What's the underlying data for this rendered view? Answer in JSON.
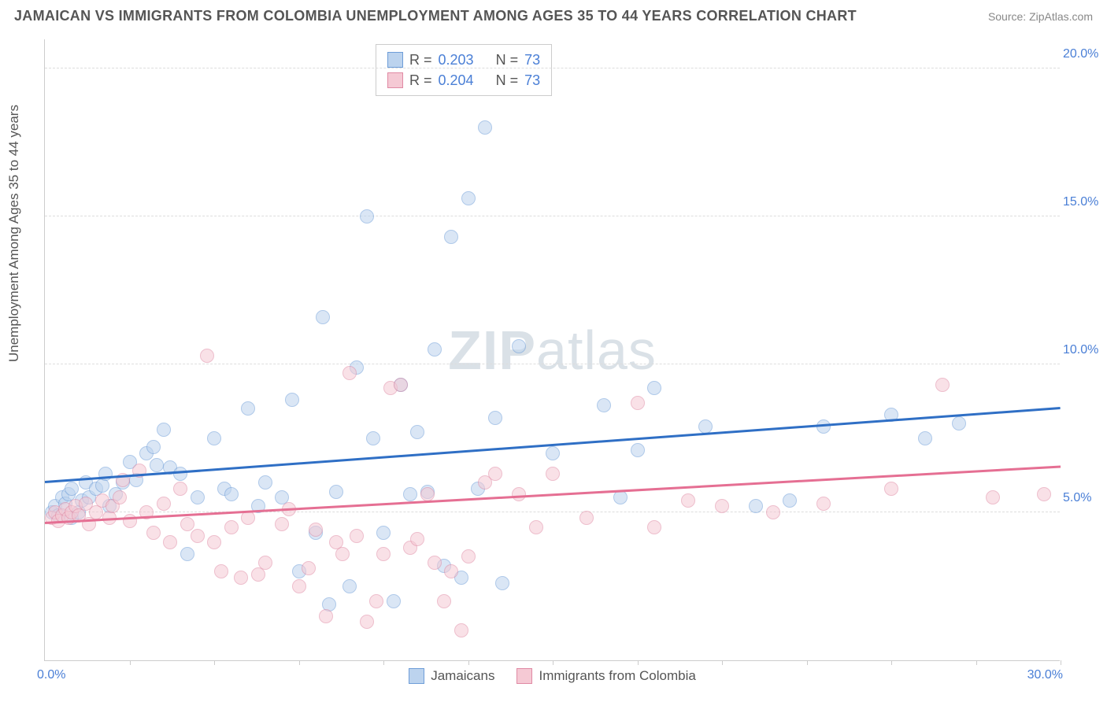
{
  "title": "JAMAICAN VS IMMIGRANTS FROM COLOMBIA UNEMPLOYMENT AMONG AGES 35 TO 44 YEARS CORRELATION CHART",
  "source": "Source: ZipAtlas.com",
  "ylabel": "Unemployment Among Ages 35 to 44 years",
  "watermark_a": "ZIP",
  "watermark_b": "atlas",
  "chart": {
    "type": "scatter",
    "xlim": [
      0,
      30
    ],
    "ylim": [
      0,
      21
    ],
    "xticks": [
      2.5,
      5,
      7.5,
      10,
      12.5,
      15,
      17.5,
      20,
      22.5,
      25,
      27.5,
      30
    ],
    "xtick_labels": {
      "left": "0.0%",
      "right": "30.0%"
    },
    "yticks": [
      5,
      10,
      15,
      20
    ],
    "ytick_labels": [
      "5.0%",
      "10.0%",
      "15.0%",
      "20.0%"
    ],
    "background_color": "#ffffff",
    "grid_color": "#dddddd",
    "marker_radius": 9,
    "marker_opacity": 0.55,
    "series": [
      {
        "name": "Jamaicans",
        "fill": "#bcd3ee",
        "stroke": "#6e9dd8",
        "trend_color": "#2f6fc5",
        "r_value": "0.203",
        "n_value": "73",
        "trend": {
          "y_at_x0": 6.0,
          "y_at_xmax": 8.5
        },
        "points": [
          [
            0.2,
            5.0
          ],
          [
            0.3,
            5.2
          ],
          [
            0.4,
            4.9
          ],
          [
            0.5,
            5.5
          ],
          [
            0.6,
            5.3
          ],
          [
            0.7,
            5.6
          ],
          [
            0.8,
            5.8
          ],
          [
            0.8,
            4.8
          ],
          [
            1.0,
            5.0
          ],
          [
            1.1,
            5.4
          ],
          [
            1.2,
            6.0
          ],
          [
            1.3,
            5.5
          ],
          [
            1.5,
            5.8
          ],
          [
            1.7,
            5.9
          ],
          [
            1.8,
            6.3
          ],
          [
            1.9,
            5.2
          ],
          [
            2.1,
            5.6
          ],
          [
            2.3,
            6.0
          ],
          [
            2.5,
            6.7
          ],
          [
            2.7,
            6.1
          ],
          [
            3.0,
            7.0
          ],
          [
            3.2,
            7.2
          ],
          [
            3.3,
            6.6
          ],
          [
            3.5,
            7.8
          ],
          [
            3.7,
            6.5
          ],
          [
            4.0,
            6.3
          ],
          [
            4.2,
            3.6
          ],
          [
            4.5,
            5.5
          ],
          [
            5.0,
            7.5
          ],
          [
            5.3,
            5.8
          ],
          [
            5.5,
            5.6
          ],
          [
            6.0,
            8.5
          ],
          [
            6.3,
            5.2
          ],
          [
            6.5,
            6.0
          ],
          [
            7.0,
            5.5
          ],
          [
            7.3,
            8.8
          ],
          [
            7.5,
            3.0
          ],
          [
            8.0,
            4.3
          ],
          [
            8.2,
            11.6
          ],
          [
            8.4,
            1.9
          ],
          [
            8.6,
            5.7
          ],
          [
            9.0,
            2.5
          ],
          [
            9.2,
            9.9
          ],
          [
            9.5,
            15.0
          ],
          [
            9.7,
            7.5
          ],
          [
            10.0,
            4.3
          ],
          [
            10.3,
            2.0
          ],
          [
            10.5,
            9.3
          ],
          [
            10.8,
            5.6
          ],
          [
            11.0,
            7.7
          ],
          [
            11.3,
            5.7
          ],
          [
            11.5,
            10.5
          ],
          [
            11.8,
            3.2
          ],
          [
            12.0,
            14.3
          ],
          [
            12.3,
            2.8
          ],
          [
            12.5,
            15.6
          ],
          [
            12.8,
            5.8
          ],
          [
            13.0,
            18.0
          ],
          [
            13.3,
            8.2
          ],
          [
            13.5,
            2.6
          ],
          [
            14.0,
            10.6
          ],
          [
            15.0,
            7.0
          ],
          [
            16.5,
            8.6
          ],
          [
            17.0,
            5.5
          ],
          [
            17.5,
            7.1
          ],
          [
            18.0,
            9.2
          ],
          [
            19.5,
            7.9
          ],
          [
            21.0,
            5.2
          ],
          [
            22.0,
            5.4
          ],
          [
            23.0,
            7.9
          ],
          [
            25.0,
            8.3
          ],
          [
            26.0,
            7.5
          ],
          [
            27.0,
            8.0
          ]
        ]
      },
      {
        "name": "Immigants from Colombia",
        "label": "Immigrants from Colombia",
        "fill": "#f5c9d4",
        "stroke": "#e08aa4",
        "trend_color": "#e56f93",
        "r_value": "0.204",
        "n_value": "73",
        "trend": {
          "y_at_x0": 4.6,
          "y_at_xmax": 6.5
        },
        "points": [
          [
            0.2,
            4.8
          ],
          [
            0.3,
            5.0
          ],
          [
            0.4,
            4.7
          ],
          [
            0.5,
            4.9
          ],
          [
            0.6,
            5.1
          ],
          [
            0.7,
            4.8
          ],
          [
            0.8,
            5.0
          ],
          [
            0.9,
            5.2
          ],
          [
            1.0,
            4.9
          ],
          [
            1.2,
            5.3
          ],
          [
            1.3,
            4.6
          ],
          [
            1.5,
            5.0
          ],
          [
            1.7,
            5.4
          ],
          [
            1.9,
            4.8
          ],
          [
            2.0,
            5.2
          ],
          [
            2.2,
            5.5
          ],
          [
            2.3,
            6.1
          ],
          [
            2.5,
            4.7
          ],
          [
            2.8,
            6.4
          ],
          [
            3.0,
            5.0
          ],
          [
            3.2,
            4.3
          ],
          [
            3.5,
            5.3
          ],
          [
            3.7,
            4.0
          ],
          [
            4.0,
            5.8
          ],
          [
            4.2,
            4.6
          ],
          [
            4.5,
            4.2
          ],
          [
            4.8,
            10.3
          ],
          [
            5.0,
            4.0
          ],
          [
            5.2,
            3.0
          ],
          [
            5.5,
            4.5
          ],
          [
            5.8,
            2.8
          ],
          [
            6.0,
            4.8
          ],
          [
            6.3,
            2.9
          ],
          [
            6.5,
            3.3
          ],
          [
            7.0,
            4.6
          ],
          [
            7.2,
            5.1
          ],
          [
            7.5,
            2.5
          ],
          [
            7.8,
            3.1
          ],
          [
            8.0,
            4.4
          ],
          [
            8.3,
            1.5
          ],
          [
            8.6,
            4.0
          ],
          [
            8.8,
            3.6
          ],
          [
            9.0,
            9.7
          ],
          [
            9.2,
            4.2
          ],
          [
            9.5,
            1.3
          ],
          [
            9.8,
            2.0
          ],
          [
            10.0,
            3.6
          ],
          [
            10.2,
            9.2
          ],
          [
            10.5,
            9.3
          ],
          [
            10.8,
            3.8
          ],
          [
            11.0,
            4.1
          ],
          [
            11.3,
            5.6
          ],
          [
            11.5,
            3.3
          ],
          [
            11.8,
            2.0
          ],
          [
            12.0,
            3.0
          ],
          [
            12.3,
            1.0
          ],
          [
            12.5,
            3.5
          ],
          [
            13.0,
            6.0
          ],
          [
            13.3,
            6.3
          ],
          [
            14.0,
            5.6
          ],
          [
            15.0,
            6.3
          ],
          [
            16.0,
            4.8
          ],
          [
            17.5,
            8.7
          ],
          [
            18.0,
            4.5
          ],
          [
            19.0,
            5.4
          ],
          [
            20.0,
            5.2
          ],
          [
            21.5,
            5.0
          ],
          [
            23.0,
            5.3
          ],
          [
            25.0,
            5.8
          ],
          [
            26.5,
            9.3
          ],
          [
            28.0,
            5.5
          ],
          [
            29.5,
            5.6
          ],
          [
            14.5,
            4.5
          ]
        ]
      }
    ],
    "legend_top_labels": {
      "r": "R =",
      "n": "N ="
    },
    "legend_bottom": [
      "Jamaicans",
      "Immigrants from Colombia"
    ]
  }
}
